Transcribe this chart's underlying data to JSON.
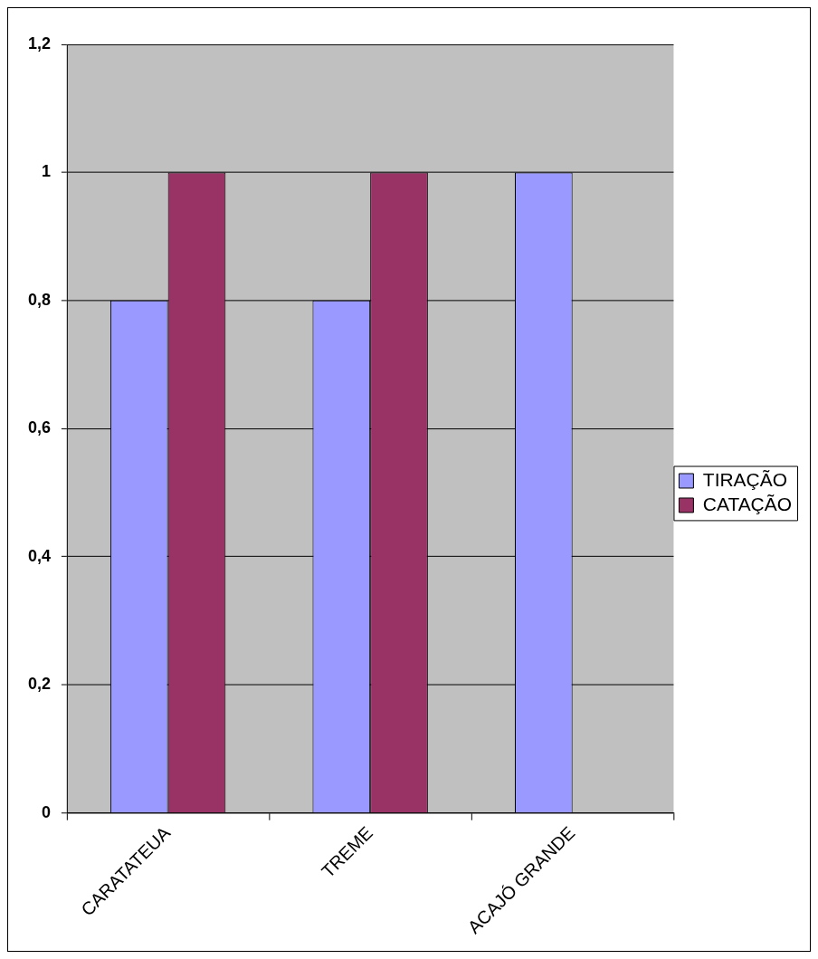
{
  "chart_data": {
    "type": "bar",
    "categories": [
      "CARATATEUA",
      "TREME",
      "ACAJÓ GRANDE"
    ],
    "series": [
      {
        "name": "TIRAÇÃO",
        "color": "#9999ff",
        "values": [
          0.8,
          0.8,
          1
        ]
      },
      {
        "name": "CATAÇÃO",
        "color": "#993366",
        "values": [
          1,
          1,
          null
        ]
      }
    ],
    "ylim": [
      0,
      1.2
    ],
    "yticks": [
      0,
      {
        "value": 0.2,
        "label": "0,2"
      },
      {
        "value": 0.4,
        "label": "0,4"
      },
      {
        "value": 0.6,
        "label": "0,6"
      },
      {
        "value": 0.8,
        "label": "0,8"
      },
      1,
      {
        "value": 1.2,
        "label": "1,2"
      }
    ],
    "grid": "y",
    "legend": "right"
  }
}
